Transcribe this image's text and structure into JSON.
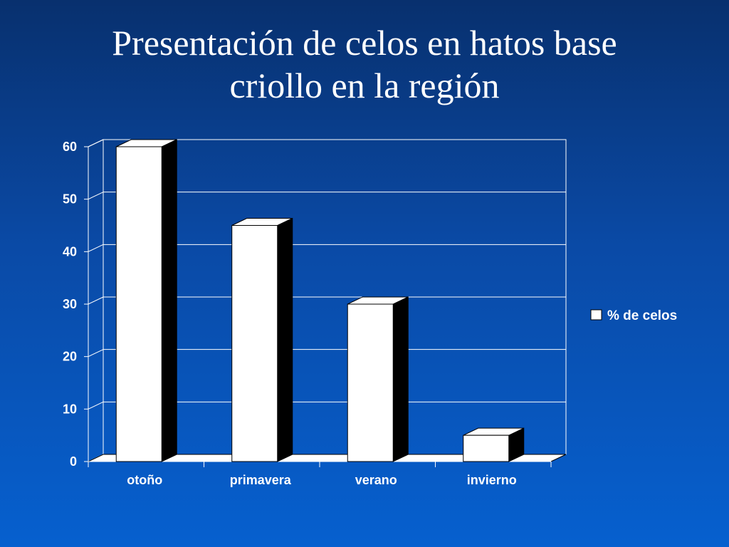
{
  "slide": {
    "title_line1": "Presentación de celos en hatos base",
    "title_line2": "criollo en la región"
  },
  "colors": {
    "bar_front": "#ffffff",
    "bar_side": "#000000",
    "grid": "#ffffff",
    "text": "#ffffff"
  },
  "chart_data": {
    "type": "bar",
    "style": "3d-column",
    "title": "",
    "xlabel": "",
    "ylabel": "",
    "categories": [
      "otoño",
      "primavera",
      "verano",
      "invierno"
    ],
    "series": [
      {
        "name": "% de celos",
        "values": [
          60,
          45,
          30,
          5
        ]
      }
    ],
    "ylim": [
      0,
      60
    ],
    "yticks": [
      "0",
      "10",
      "20",
      "30",
      "40",
      "50",
      "60"
    ],
    "grid": true,
    "legend_position": "right"
  }
}
